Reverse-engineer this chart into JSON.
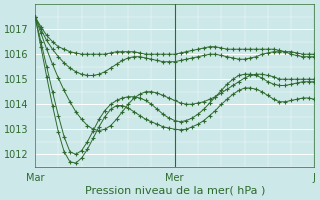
{
  "bg_color": "#cce8e8",
  "grid_color": "#ffffff",
  "line_color": "#2d6a2d",
  "ylabel_text": "Pression niveau de la mer( hPa )",
  "xlabel_labels": [
    "Mar",
    "Mer",
    "J"
  ],
  "ylim": [
    1011.5,
    1018.0
  ],
  "yticks": [
    1012,
    1013,
    1014,
    1015,
    1016,
    1017
  ],
  "n_points": 49,
  "vline_x": 24,
  "vline_x2": 48,
  "tick_color": "#2d6a2d",
  "tick_fontsize": 7,
  "xlabel_fontsize": 8,
  "line1_x": [
    0,
    1,
    2,
    3,
    4,
    5,
    6,
    7,
    8,
    9,
    10,
    11,
    12,
    13,
    14,
    15,
    16,
    17,
    18,
    19,
    20,
    21,
    22,
    23,
    24,
    25,
    26,
    27,
    28,
    29,
    30,
    31,
    32,
    33,
    34,
    35,
    36,
    37,
    38,
    39,
    40,
    41,
    42,
    43,
    44,
    45,
    46,
    47,
    48
  ],
  "line1_y": [
    1017.5,
    1017.1,
    1016.75,
    1016.5,
    1016.3,
    1016.2,
    1016.1,
    1016.05,
    1016.0,
    1016.0,
    1016.0,
    1016.0,
    1016.0,
    1016.05,
    1016.1,
    1016.1,
    1016.1,
    1016.1,
    1016.05,
    1016.0,
    1016.0,
    1016.0,
    1016.0,
    1016.0,
    1016.0,
    1016.05,
    1016.1,
    1016.15,
    1016.2,
    1016.25,
    1016.3,
    1016.3,
    1016.25,
    1016.2,
    1016.2,
    1016.2,
    1016.2,
    1016.2,
    1016.2,
    1016.2,
    1016.2,
    1016.2,
    1016.15,
    1016.1,
    1016.1,
    1016.05,
    1016.0,
    1016.0,
    1016.0
  ],
  "line2_x": [
    0,
    1,
    2,
    3,
    4,
    5,
    6,
    7,
    8,
    9,
    10,
    11,
    12,
    13,
    14,
    15,
    16,
    17,
    18,
    19,
    20,
    21,
    22,
    23,
    24,
    25,
    26,
    27,
    28,
    29,
    30,
    31,
    32,
    33,
    34,
    35,
    36,
    37,
    38,
    39,
    40,
    41,
    42,
    43,
    44,
    45,
    46,
    47,
    48
  ],
  "line2_y": [
    1017.5,
    1017.0,
    1016.55,
    1016.2,
    1015.9,
    1015.65,
    1015.45,
    1015.3,
    1015.2,
    1015.15,
    1015.15,
    1015.2,
    1015.3,
    1015.45,
    1015.6,
    1015.75,
    1015.85,
    1015.9,
    1015.9,
    1015.85,
    1015.8,
    1015.75,
    1015.7,
    1015.7,
    1015.7,
    1015.75,
    1015.8,
    1015.85,
    1015.9,
    1015.95,
    1016.0,
    1016.0,
    1015.95,
    1015.9,
    1015.85,
    1015.8,
    1015.8,
    1015.85,
    1015.9,
    1016.0,
    1016.05,
    1016.1,
    1016.1,
    1016.1,
    1016.0,
    1015.95,
    1015.9,
    1015.9,
    1015.9
  ],
  "line3_x": [
    0,
    1,
    2,
    3,
    4,
    5,
    6,
    7,
    8,
    9,
    10,
    11,
    12,
    13,
    14,
    15,
    16,
    17,
    18,
    19,
    20,
    21,
    22,
    23,
    24,
    25,
    26,
    27,
    28,
    29,
    30,
    31,
    32,
    33,
    34,
    35,
    36,
    37,
    38,
    39,
    40,
    41,
    42,
    43,
    44,
    45,
    46,
    47,
    48
  ],
  "line3_y": [
    1017.5,
    1016.85,
    1016.2,
    1015.6,
    1015.05,
    1014.55,
    1014.1,
    1013.7,
    1013.4,
    1013.15,
    1013.0,
    1012.95,
    1013.0,
    1013.15,
    1013.4,
    1013.7,
    1014.0,
    1014.25,
    1014.4,
    1014.5,
    1014.5,
    1014.45,
    1014.35,
    1014.25,
    1014.15,
    1014.05,
    1014.0,
    1014.0,
    1014.05,
    1014.1,
    1014.2,
    1014.3,
    1014.45,
    1014.6,
    1014.75,
    1014.9,
    1015.05,
    1015.15,
    1015.2,
    1015.2,
    1015.15,
    1015.1,
    1015.0,
    1015.0,
    1015.0,
    1015.0,
    1015.0,
    1015.0,
    1015.0
  ],
  "line4_x": [
    0,
    1,
    2,
    3,
    4,
    5,
    6,
    7,
    8,
    9,
    10,
    11,
    12,
    13,
    14,
    15,
    16,
    17,
    18,
    19,
    20,
    21,
    22,
    23,
    24,
    25,
    26,
    27,
    28,
    29,
    30,
    31,
    32,
    33,
    34,
    35,
    36,
    37,
    38,
    39,
    40,
    41,
    42,
    43,
    44,
    45,
    46,
    47,
    48
  ],
  "line4_y": [
    1017.5,
    1016.5,
    1015.5,
    1014.5,
    1013.55,
    1012.7,
    1012.1,
    1012.0,
    1012.15,
    1012.5,
    1012.95,
    1013.4,
    1013.75,
    1014.0,
    1014.15,
    1014.25,
    1014.3,
    1014.3,
    1014.25,
    1014.15,
    1014.0,
    1013.8,
    1013.6,
    1013.45,
    1013.35,
    1013.3,
    1013.35,
    1013.45,
    1013.6,
    1013.8,
    1014.05,
    1014.3,
    1014.55,
    1014.8,
    1015.0,
    1015.15,
    1015.2,
    1015.2,
    1015.15,
    1015.05,
    1014.9,
    1014.8,
    1014.75,
    1014.75,
    1014.8,
    1014.85,
    1014.9,
    1014.9,
    1014.9
  ],
  "line5_x": [
    0,
    1,
    2,
    3,
    4,
    5,
    6,
    7,
    8,
    9,
    10,
    11,
    12,
    13,
    14,
    15,
    16,
    17,
    18,
    19,
    20,
    21,
    22,
    23,
    24,
    25,
    26,
    27,
    28,
    29,
    30,
    31,
    32,
    33,
    34,
    35,
    36,
    37,
    38,
    39,
    40,
    41,
    42,
    43,
    44,
    45,
    46,
    47,
    48
  ],
  "line5_y": [
    1017.5,
    1016.3,
    1015.1,
    1013.95,
    1012.9,
    1012.1,
    1011.7,
    1011.65,
    1011.85,
    1012.2,
    1012.65,
    1013.1,
    1013.5,
    1013.8,
    1013.95,
    1013.95,
    1013.85,
    1013.7,
    1013.55,
    1013.4,
    1013.3,
    1013.2,
    1013.1,
    1013.05,
    1013.0,
    1012.98,
    1013.0,
    1013.1,
    1013.2,
    1013.35,
    1013.55,
    1013.75,
    1014.0,
    1014.2,
    1014.4,
    1014.55,
    1014.65,
    1014.65,
    1014.6,
    1014.5,
    1014.35,
    1014.2,
    1014.1,
    1014.1,
    1014.15,
    1014.2,
    1014.25,
    1014.25,
    1014.2
  ]
}
